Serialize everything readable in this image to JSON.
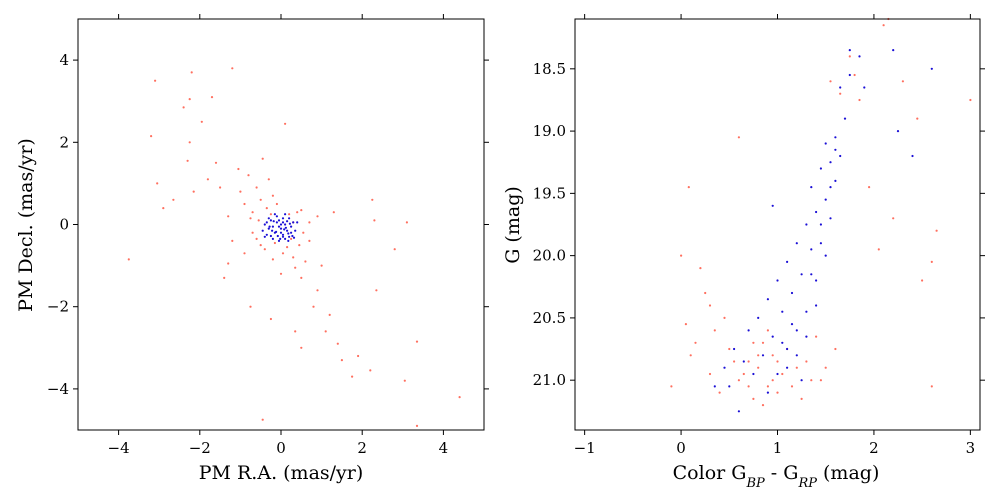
{
  "colors": {
    "field_stars": "#ff6f5f",
    "members": "#1a0fd6"
  },
  "chart_data": [
    {
      "type": "scatter",
      "xlabel": "PM R.A. (mas/yr)",
      "ylabel": "PM Decl. (mas/yr)",
      "xlim": [
        -5,
        5
      ],
      "ylim": [
        -5,
        5
      ],
      "xticks": [
        -4,
        -2,
        0,
        2,
        4
      ],
      "yticks": [
        -4,
        -2,
        0,
        2,
        4
      ],
      "xtick_labels": [
        "−4",
        "−2",
        "0",
        "2",
        "4"
      ],
      "ytick_labels": [
        "−4",
        "−2",
        "0",
        "2",
        "4"
      ],
      "grid": false,
      "legend": "none",
      "series": [
        {
          "color": "#ff6f5f",
          "points": [
            [
              -3.75,
              -0.85
            ],
            [
              -3.2,
              2.15
            ],
            [
              -3.1,
              3.5
            ],
            [
              -3.05,
              1.0
            ],
            [
              -2.9,
              0.4
            ],
            [
              -2.65,
              0.6
            ],
            [
              -2.4,
              2.85
            ],
            [
              -2.25,
              3.05
            ],
            [
              -2.2,
              3.7
            ],
            [
              -2.25,
              2.0
            ],
            [
              -2.3,
              1.55
            ],
            [
              -2.15,
              0.8
            ],
            [
              -1.95,
              2.5
            ],
            [
              -1.8,
              1.1
            ],
            [
              -1.7,
              3.1
            ],
            [
              -1.6,
              1.5
            ],
            [
              -1.5,
              0.9
            ],
            [
              -1.2,
              3.8
            ],
            [
              -1.3,
              0.2
            ],
            [
              -1.05,
              1.35
            ],
            [
              -1.0,
              0.8
            ],
            [
              -0.9,
              0.5
            ],
            [
              -0.8,
              1.2
            ],
            [
              -0.7,
              0.3
            ],
            [
              -0.6,
              0.9
            ],
            [
              -0.5,
              0.6
            ],
            [
              -0.45,
              1.6
            ],
            [
              -0.3,
              1.1
            ],
            [
              -0.2,
              0.7
            ],
            [
              -0.1,
              0.5
            ],
            [
              -0.5,
              -0.5
            ],
            [
              -0.7,
              -0.2
            ],
            [
              -0.9,
              -0.7
            ],
            [
              -1.4,
              -1.3
            ],
            [
              -1.3,
              -0.95
            ],
            [
              -0.75,
              -2.0
            ],
            [
              -0.25,
              -2.3
            ],
            [
              0.0,
              -1.2
            ],
            [
              0.1,
              2.45
            ],
            [
              0.3,
              -0.8
            ],
            [
              0.5,
              -1.3
            ],
            [
              0.6,
              -0.9
            ],
            [
              0.7,
              -0.4
            ],
            [
              0.8,
              -2.0
            ],
            [
              0.9,
              -1.6
            ],
            [
              1.0,
              -1.0
            ],
            [
              1.1,
              -2.6
            ],
            [
              0.35,
              -2.6
            ],
            [
              0.5,
              -3.0
            ],
            [
              1.2,
              -2.2
            ],
            [
              1.4,
              -2.9
            ],
            [
              1.5,
              -3.3
            ],
            [
              1.75,
              -3.7
            ],
            [
              1.9,
              -3.2
            ],
            [
              2.2,
              -3.55
            ],
            [
              2.25,
              0.6
            ],
            [
              2.3,
              0.1
            ],
            [
              2.35,
              -1.6
            ],
            [
              2.8,
              -0.6
            ],
            [
              3.05,
              -3.8
            ],
            [
              3.1,
              0.05
            ],
            [
              3.35,
              -2.85
            ],
            [
              3.35,
              -4.9
            ],
            [
              4.4,
              -4.2
            ],
            [
              -0.45,
              -4.75
            ],
            [
              0.9,
              0.2
            ],
            [
              1.3,
              0.3
            ],
            [
              0.5,
              0.35
            ],
            [
              0.45,
              -0.5
            ],
            [
              0.3,
              0.05
            ],
            [
              -0.35,
              0.4
            ],
            [
              -0.55,
              0.1
            ],
            [
              -0.4,
              -0.6
            ],
            [
              0.15,
              -0.55
            ],
            [
              0.05,
              -0.7
            ],
            [
              -0.2,
              -0.85
            ],
            [
              0.35,
              -1.05
            ],
            [
              -0.15,
              -0.45
            ],
            [
              -0.6,
              -0.35
            ],
            [
              0.4,
              0.3
            ],
            [
              -0.25,
              0.25
            ],
            [
              0.2,
              0.25
            ],
            [
              0.55,
              -0.2
            ],
            [
              -0.75,
              0.15
            ],
            [
              0.25,
              -0.35
            ],
            [
              -1.2,
              -0.4
            ],
            [
              0.7,
              0.05
            ]
          ]
        },
        {
          "color": "#1a0fd6",
          "points": [
            [
              -0.3,
              -0.1
            ],
            [
              -0.25,
              0.1
            ],
            [
              -0.15,
              -0.2
            ],
            [
              -0.1,
              0.05
            ],
            [
              0.0,
              -0.1
            ],
            [
              0.05,
              -0.25
            ],
            [
              0.1,
              0.0
            ],
            [
              0.15,
              -0.15
            ],
            [
              0.2,
              -0.3
            ],
            [
              0.25,
              -0.05
            ],
            [
              -0.35,
              -0.25
            ],
            [
              -0.2,
              -0.35
            ],
            [
              -0.05,
              -0.4
            ],
            [
              0.1,
              -0.35
            ],
            [
              0.25,
              -0.2
            ],
            [
              0.3,
              0.05
            ],
            [
              -0.4,
              0.0
            ],
            [
              -0.3,
              0.15
            ],
            [
              -0.1,
              0.2
            ],
            [
              0.05,
              0.15
            ],
            [
              0.2,
              0.15
            ],
            [
              -0.45,
              -0.15
            ],
            [
              0.35,
              -0.15
            ],
            [
              -0.2,
              -0.05
            ],
            [
              0.0,
              0.0
            ],
            [
              0.12,
              -0.08
            ],
            [
              -0.12,
              -0.18
            ],
            [
              0.18,
              -0.22
            ],
            [
              -0.28,
              -0.05
            ],
            [
              0.05,
              -0.3
            ],
            [
              -0.05,
              0.1
            ],
            [
              0.28,
              -0.28
            ],
            [
              -0.35,
              0.05
            ],
            [
              0.0,
              -0.2
            ],
            [
              0.15,
              0.08
            ],
            [
              -0.18,
              0.08
            ],
            [
              -0.08,
              -0.28
            ],
            [
              0.08,
              -0.12
            ],
            [
              0.22,
              0.02
            ],
            [
              -0.25,
              -0.28
            ],
            [
              0.32,
              -0.32
            ],
            [
              -0.15,
              0.25
            ],
            [
              0.1,
              0.25
            ],
            [
              -0.4,
              -0.3
            ],
            [
              0.4,
              0.05
            ],
            [
              -0.02,
              -0.35
            ],
            [
              -0.22,
              -0.15
            ],
            [
              0.18,
              -0.4
            ],
            [
              -0.05,
              -0.05
            ],
            [
              0.05,
              0.05
            ]
          ]
        }
      ]
    },
    {
      "type": "scatter",
      "xlabel": "Color G_BP - G_RP (mag)",
      "ylabel": "G (mag)",
      "xlim": [
        -1.1,
        3.1
      ],
      "ylim": [
        21.4,
        18.1
      ],
      "y_inverted": true,
      "xticks": [
        -1,
        0,
        1,
        2,
        3
      ],
      "yticks": [
        18.5,
        19.0,
        19.5,
        20.0,
        20.5,
        21.0
      ],
      "xtick_labels": [
        "−1",
        "0",
        "1",
        "2",
        "3"
      ],
      "ytick_labels": [
        "18.5",
        "19.0",
        "19.5",
        "20.0",
        "20.5",
        "21.0"
      ],
      "grid": false,
      "legend": "none",
      "series": [
        {
          "color": "#ff6f5f",
          "points": [
            [
              -0.1,
              21.05
            ],
            [
              0.0,
              20.0
            ],
            [
              0.05,
              20.55
            ],
            [
              0.08,
              19.45
            ],
            [
              0.1,
              20.8
            ],
            [
              0.2,
              20.1
            ],
            [
              0.25,
              20.3
            ],
            [
              0.3,
              20.95
            ],
            [
              0.35,
              20.6
            ],
            [
              0.4,
              21.1
            ],
            [
              0.5,
              20.75
            ],
            [
              0.6,
              19.05
            ],
            [
              0.6,
              21.0
            ],
            [
              0.7,
              20.85
            ],
            [
              0.75,
              21.15
            ],
            [
              0.8,
              20.9
            ],
            [
              0.85,
              20.7
            ],
            [
              0.9,
              21.05
            ],
            [
              0.95,
              20.8
            ],
            [
              1.0,
              21.1
            ],
            [
              1.05,
              20.95
            ],
            [
              1.1,
              20.75
            ],
            [
              1.15,
              21.05
            ],
            [
              1.2,
              20.9
            ],
            [
              1.3,
              20.85
            ],
            [
              1.35,
              21.0
            ],
            [
              1.4,
              20.65
            ],
            [
              1.5,
              20.9
            ],
            [
              1.55,
              18.6
            ],
            [
              1.6,
              20.75
            ],
            [
              1.65,
              18.7
            ],
            [
              1.75,
              18.4
            ],
            [
              1.8,
              18.55
            ],
            [
              1.85,
              18.75
            ],
            [
              1.95,
              19.45
            ],
            [
              2.05,
              19.95
            ],
            [
              2.1,
              18.15
            ],
            [
              2.15,
              18.1
            ],
            [
              2.2,
              19.7
            ],
            [
              2.3,
              18.6
            ],
            [
              2.5,
              20.2
            ],
            [
              2.6,
              21.05
            ],
            [
              2.6,
              20.05
            ],
            [
              2.65,
              19.8
            ],
            [
              3.0,
              18.75
            ],
            [
              2.45,
              18.9
            ],
            [
              0.55,
              20.85
            ],
            [
              0.65,
              20.95
            ],
            [
              0.75,
              20.7
            ],
            [
              0.85,
              21.2
            ],
            [
              0.95,
              21.0
            ],
            [
              1.25,
              21.15
            ],
            [
              0.45,
              20.5
            ],
            [
              0.15,
              20.7
            ],
            [
              0.3,
              20.4
            ],
            [
              0.9,
              20.6
            ],
            [
              1.45,
              21.0
            ],
            [
              0.7,
              21.05
            ],
            [
              0.8,
              20.8
            ],
            [
              1.0,
              20.85
            ]
          ]
        },
        {
          "color": "#1a0fd6",
          "points": [
            [
              0.35,
              21.05
            ],
            [
              0.45,
              20.9
            ],
            [
              0.55,
              20.75
            ],
            [
              0.6,
              21.25
            ],
            [
              0.65,
              20.85
            ],
            [
              0.7,
              20.6
            ],
            [
              0.75,
              20.95
            ],
            [
              0.8,
              20.5
            ],
            [
              0.85,
              20.8
            ],
            [
              0.9,
              20.35
            ],
            [
              0.95,
              20.65
            ],
            [
              1.0,
              20.2
            ],
            [
              1.0,
              20.95
            ],
            [
              1.05,
              20.45
            ],
            [
              1.1,
              20.05
            ],
            [
              1.1,
              20.75
            ],
            [
              1.15,
              20.3
            ],
            [
              1.2,
              19.9
            ],
            [
              1.2,
              20.6
            ],
            [
              1.25,
              20.15
            ],
            [
              1.3,
              19.75
            ],
            [
              1.3,
              20.45
            ],
            [
              1.35,
              19.95
            ],
            [
              1.35,
              19.45
            ],
            [
              1.4,
              20.2
            ],
            [
              1.4,
              19.65
            ],
            [
              1.45,
              19.3
            ],
            [
              1.45,
              19.9
            ],
            [
              1.5,
              19.1
            ],
            [
              1.5,
              19.55
            ],
            [
              1.55,
              19.25
            ],
            [
              1.55,
              19.7
            ],
            [
              1.6,
              19.05
            ],
            [
              1.6,
              19.4
            ],
            [
              1.65,
              19.2
            ],
            [
              1.7,
              18.9
            ],
            [
              1.75,
              18.55
            ],
            [
              1.2,
              20.8
            ],
            [
              1.25,
              21.0
            ],
            [
              1.1,
              20.9
            ],
            [
              1.3,
              20.65
            ],
            [
              1.4,
              20.4
            ],
            [
              1.5,
              20.0
            ],
            [
              1.45,
              19.75
            ],
            [
              1.55,
              19.45
            ],
            [
              1.6,
              19.15
            ],
            [
              2.2,
              18.35
            ],
            [
              2.25,
              19.0
            ],
            [
              2.4,
              19.2
            ],
            [
              2.6,
              18.5
            ],
            [
              1.9,
              18.65
            ],
            [
              1.85,
              18.4
            ],
            [
              1.75,
              18.35
            ],
            [
              0.95,
              19.6
            ],
            [
              1.65,
              18.65
            ],
            [
              0.5,
              21.05
            ],
            [
              0.9,
              21.1
            ],
            [
              1.05,
              20.7
            ],
            [
              1.35,
              20.15
            ],
            [
              1.15,
              20.55
            ]
          ]
        }
      ]
    }
  ]
}
